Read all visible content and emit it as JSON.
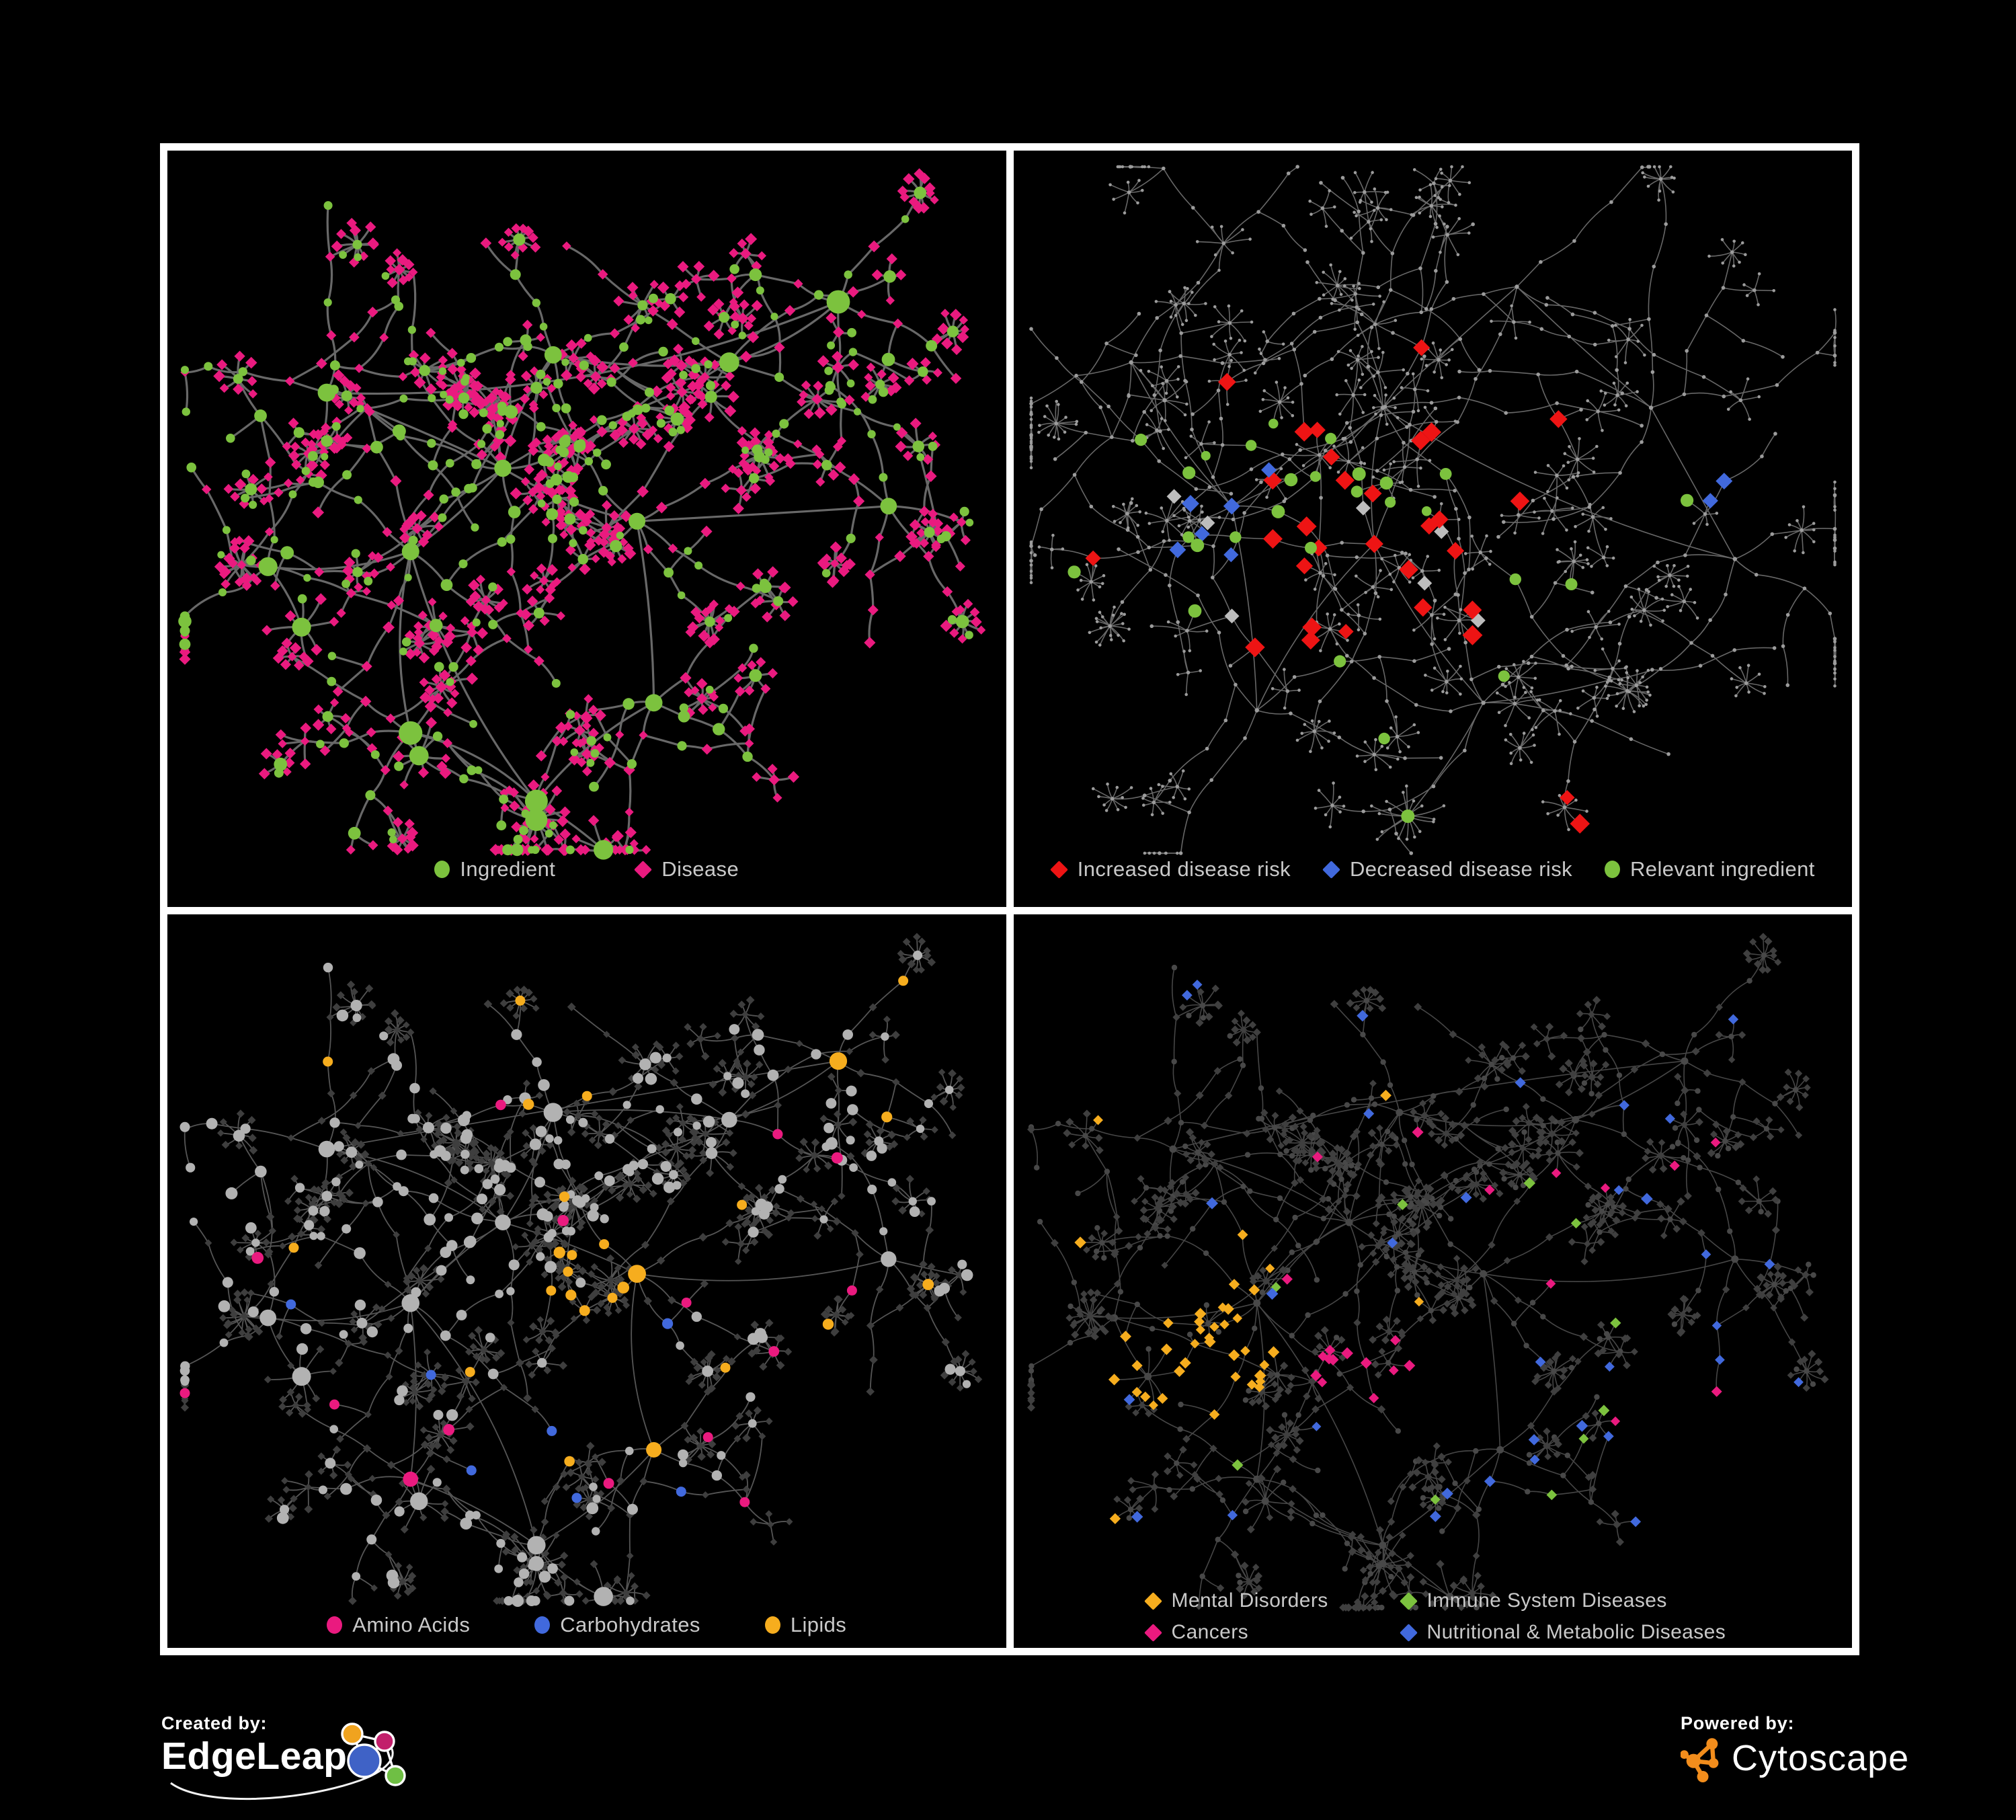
{
  "page": {
    "bg": "#000000",
    "frame": "#ffffff",
    "legend_text_color": "#c9c9c9"
  },
  "panels": {
    "ingredient_disease": {
      "legend": [
        {
          "label": "Ingredient",
          "shape": "circle",
          "color": "#7cc23e"
        },
        {
          "label": "Disease",
          "shape": "diamond",
          "color": "#ea1a7f"
        }
      ]
    },
    "disease_risk": {
      "legend": [
        {
          "label": "Increased disease risk",
          "shape": "diamond",
          "color": "#ee1414"
        },
        {
          "label": "Decreased disease risk",
          "shape": "diamond",
          "color": "#4169dd"
        },
        {
          "label": "Relevant ingredient",
          "shape": "circle",
          "color": "#7cc23e"
        }
      ]
    },
    "nutrient_classes": {
      "legend": [
        {
          "label": "Amino Acids",
          "shape": "circle",
          "color": "#ea1a7f"
        },
        {
          "label": "Carbohydrates",
          "shape": "circle",
          "color": "#4169dd"
        },
        {
          "label": "Lipids",
          "shape": "circle",
          "color": "#f6ad1e"
        }
      ]
    },
    "disease_classes": {
      "legend": [
        {
          "label": "Mental Disorders",
          "shape": "diamond",
          "color": "#f6ad1e"
        },
        {
          "label": "Immune System Diseases",
          "shape": "diamond",
          "color": "#7cc23e"
        },
        {
          "label": "Cancers",
          "shape": "diamond",
          "color": "#ea1a7f"
        },
        {
          "label": "Nutritional & Metabolic Diseases",
          "shape": "diamond",
          "color": "#4169dd"
        }
      ]
    }
  },
  "footer": {
    "created_by": "Created by:",
    "brand": "EdgeLeap",
    "powered_by": "Powered by:",
    "engine": "Cytoscape",
    "edgeleap_colors": {
      "orange": "#f0a31f",
      "magenta": "#c21f6b",
      "blue": "#3f62c6",
      "green": "#6fbf44"
    },
    "cytoscape_color": "#f28d1c"
  },
  "network": {
    "colors": {
      "green": "#7cc23e",
      "pink": "#ea1a7f",
      "red": "#ee1414",
      "blue": "#4169dd",
      "amber": "#f6ad1e",
      "hiGray": "#bdbdbd"
    },
    "layoutA": {
      "seed": 20240601,
      "curl": 0.95,
      "branchP": 0.32,
      "fanP": 0.1,
      "fanMax": 8,
      "endFanP": 0.5,
      "len": 0.047,
      "cross": 26,
      "bottomPad": 85,
      "clusters": [
        [
          0.4,
          0.42,
          7,
          5,
          0.45,
          1.0
        ],
        [
          0.29,
          0.53,
          6,
          5,
          0.4,
          1.0
        ],
        [
          0.46,
          0.27,
          6,
          4,
          0.85,
          0.9
        ],
        [
          0.56,
          0.49,
          5,
          4,
          0.45,
          1.0
        ],
        [
          0.19,
          0.32,
          4,
          5,
          0.4,
          1.05
        ],
        [
          0.67,
          0.28,
          5,
          5,
          0.35,
          1.05
        ],
        [
          0.8,
          0.2,
          4,
          4,
          0.4,
          0.95
        ],
        [
          0.86,
          0.47,
          4,
          4,
          0.35,
          0.9
        ],
        [
          0.29,
          0.77,
          5,
          4,
          0.35,
          0.95
        ],
        [
          0.44,
          0.86,
          4,
          3,
          0.4,
          0.9
        ],
        [
          0.12,
          0.55,
          3,
          5,
          0.4,
          1.0
        ],
        [
          0.58,
          0.73,
          4,
          4,
          0.35,
          0.95
        ]
      ],
      "links": [
        [
          0,
          1
        ],
        [
          0,
          2
        ],
        [
          0,
          3
        ],
        [
          0,
          4
        ],
        [
          1,
          8
        ],
        [
          1,
          10
        ],
        [
          2,
          5
        ],
        [
          3,
          7
        ],
        [
          3,
          11
        ],
        [
          5,
          6
        ],
        [
          8,
          9
        ],
        [
          9,
          11
        ],
        [
          4,
          6
        ],
        [
          1,
          9
        ]
      ],
      "stars": [
        [
          0.44,
          0.885,
          15
        ],
        [
          0.3,
          0.8,
          10
        ],
        [
          0.16,
          0.63,
          8
        ],
        [
          0.52,
          0.93,
          7
        ]
      ]
    },
    "layoutB": {
      "seed": 777001,
      "curl": 1.05,
      "branchP": 0.3,
      "fanP": 0.12,
      "fanMax": 7,
      "endFanP": 0.55,
      "len": 0.052,
      "cross": 14,
      "bottomPad": 80,
      "clusters": [
        [
          0.44,
          0.34,
          7,
          6,
          0,
          1.0
        ],
        [
          0.26,
          0.47,
          6,
          5,
          0,
          1.0
        ],
        [
          0.43,
          0.52,
          5,
          5,
          0,
          0.95
        ],
        [
          0.14,
          0.28,
          4,
          6,
          0,
          1.05
        ],
        [
          0.6,
          0.18,
          4,
          6,
          0,
          1.05
        ],
        [
          0.76,
          0.34,
          4,
          5,
          0,
          1.0
        ],
        [
          0.86,
          0.54,
          4,
          5,
          0,
          0.95
        ],
        [
          0.56,
          0.73,
          5,
          5,
          0,
          0.95
        ],
        [
          0.29,
          0.74,
          4,
          5,
          0,
          1.0
        ],
        [
          0.71,
          0.7,
          4,
          4,
          0,
          0.95
        ]
      ],
      "links": [
        [
          0,
          1
        ],
        [
          0,
          2
        ],
        [
          1,
          3
        ],
        [
          0,
          4
        ],
        [
          4,
          5
        ],
        [
          5,
          6
        ],
        [
          2,
          7
        ],
        [
          1,
          8
        ],
        [
          7,
          9
        ],
        [
          2,
          8
        ],
        [
          0,
          6
        ]
      ],
      "stars": [
        [
          0.47,
          0.88,
          16
        ],
        [
          0.18,
          0.33,
          8
        ]
      ]
    },
    "styleA": {
      "edge": "#7b7b7b",
      "edgeW": 3.2,
      "edgeO": 0.85,
      "curve": 0.3
    },
    "styleB": {
      "edge": "#6d6d6d",
      "edgeW": 1.6,
      "edgeO": 0.95,
      "curve": 0.22,
      "dot": "#9c9c9c"
    },
    "styleC": {
      "edge": "#9c9c9c",
      "edgeW": 1.8,
      "edgeO": 0.55,
      "curve": 0.3,
      "circle": "#b2b2b2",
      "diamond": "#3e3e3e"
    },
    "styleD": {
      "edge": "#585858",
      "edgeW": 1.6,
      "edgeO": 0.8,
      "curve": 0.3,
      "circle": "#484848",
      "diamond": "#3f3f3f"
    },
    "highlightsB": {
      "red": {
        "count": 24,
        "region": [
          0.28,
          0.35,
          0.58,
          0.65
        ],
        "extras": [
          [
            0.1,
            0.52
          ],
          [
            0.6,
            0.44
          ],
          [
            0.655,
            0.86
          ],
          [
            0.695,
            0.9
          ],
          [
            0.245,
            0.3
          ],
          [
            0.48,
            0.25
          ],
          [
            0.66,
            0.36
          ]
        ]
      },
      "blue": {
        "count": 0,
        "region": null,
        "extras": [
          [
            0.825,
            0.445
          ],
          [
            0.848,
            0.44
          ],
          [
            0.215,
            0.46
          ],
          [
            0.245,
            0.465
          ],
          [
            0.225,
            0.515
          ],
          [
            0.205,
            0.55
          ],
          [
            0.245,
            0.545
          ],
          [
            0.295,
            0.42
          ]
        ]
      },
      "gray": {
        "count": 0,
        "region": null,
        "extras": [
          [
            0.19,
            0.44
          ],
          [
            0.235,
            0.5
          ],
          [
            0.275,
            0.635
          ],
          [
            0.425,
            0.49
          ],
          [
            0.49,
            0.585
          ],
          [
            0.565,
            0.625
          ],
          [
            0.515,
            0.5
          ]
        ]
      },
      "green": {
        "count": 20,
        "region": [
          0.13,
          0.36,
          0.55,
          0.62
        ],
        "extras": [
          [
            0.62,
            0.585
          ],
          [
            0.655,
            0.6
          ],
          [
            0.585,
            0.7
          ],
          [
            0.47,
            0.88
          ],
          [
            0.795,
            0.45
          ],
          [
            0.065,
            0.545
          ],
          [
            0.375,
            0.7
          ],
          [
            0.44,
            0.78
          ]
        ]
      }
    },
    "highlightsC": {
      "lipids": {
        "clusters": [
          [
            0.5,
            0.5,
            0.062,
            0.75
          ],
          [
            0.575,
            0.755,
            0.035,
            0.8
          ]
        ],
        "count": 16,
        "region": [
          0.1,
          0.1,
          0.9,
          0.8
        ]
      },
      "carbs": {
        "clusters": [
          [
            0.505,
            0.505,
            0.05,
            0.22
          ]
        ],
        "count": 7,
        "region": [
          0.08,
          0.25,
          0.7,
          0.8
        ]
      },
      "amino": {
        "clusters": [],
        "count": 15,
        "region": [
          0.06,
          0.25,
          0.8,
          0.88
        ]
      }
    },
    "highlightsD": {
      "mental": {
        "clusters": [
          [
            0.22,
            0.58,
            0.11,
            0.85
          ]
        ],
        "count": 9,
        "region": [
          0.06,
          0.2,
          0.5,
          0.9
        ]
      },
      "cancers": {
        "clusters": [
          [
            0.42,
            0.64,
            0.08,
            0.5
          ]
        ],
        "count": 12,
        "region": [
          0.3,
          0.3,
          0.85,
          0.95
        ]
      },
      "nutritional": {
        "clusters": [
          [
            0.58,
            0.755,
            0.045,
            0.8
          ],
          [
            0.755,
            0.26,
            0.04,
            0.7
          ]
        ],
        "count": 30,
        "region": [
          0.1,
          0.05,
          0.95,
          0.9
        ]
      },
      "immune": {
        "clusters": [],
        "count": 10,
        "region": [
          0.25,
          0.15,
          0.75,
          0.8
        ]
      }
    }
  }
}
